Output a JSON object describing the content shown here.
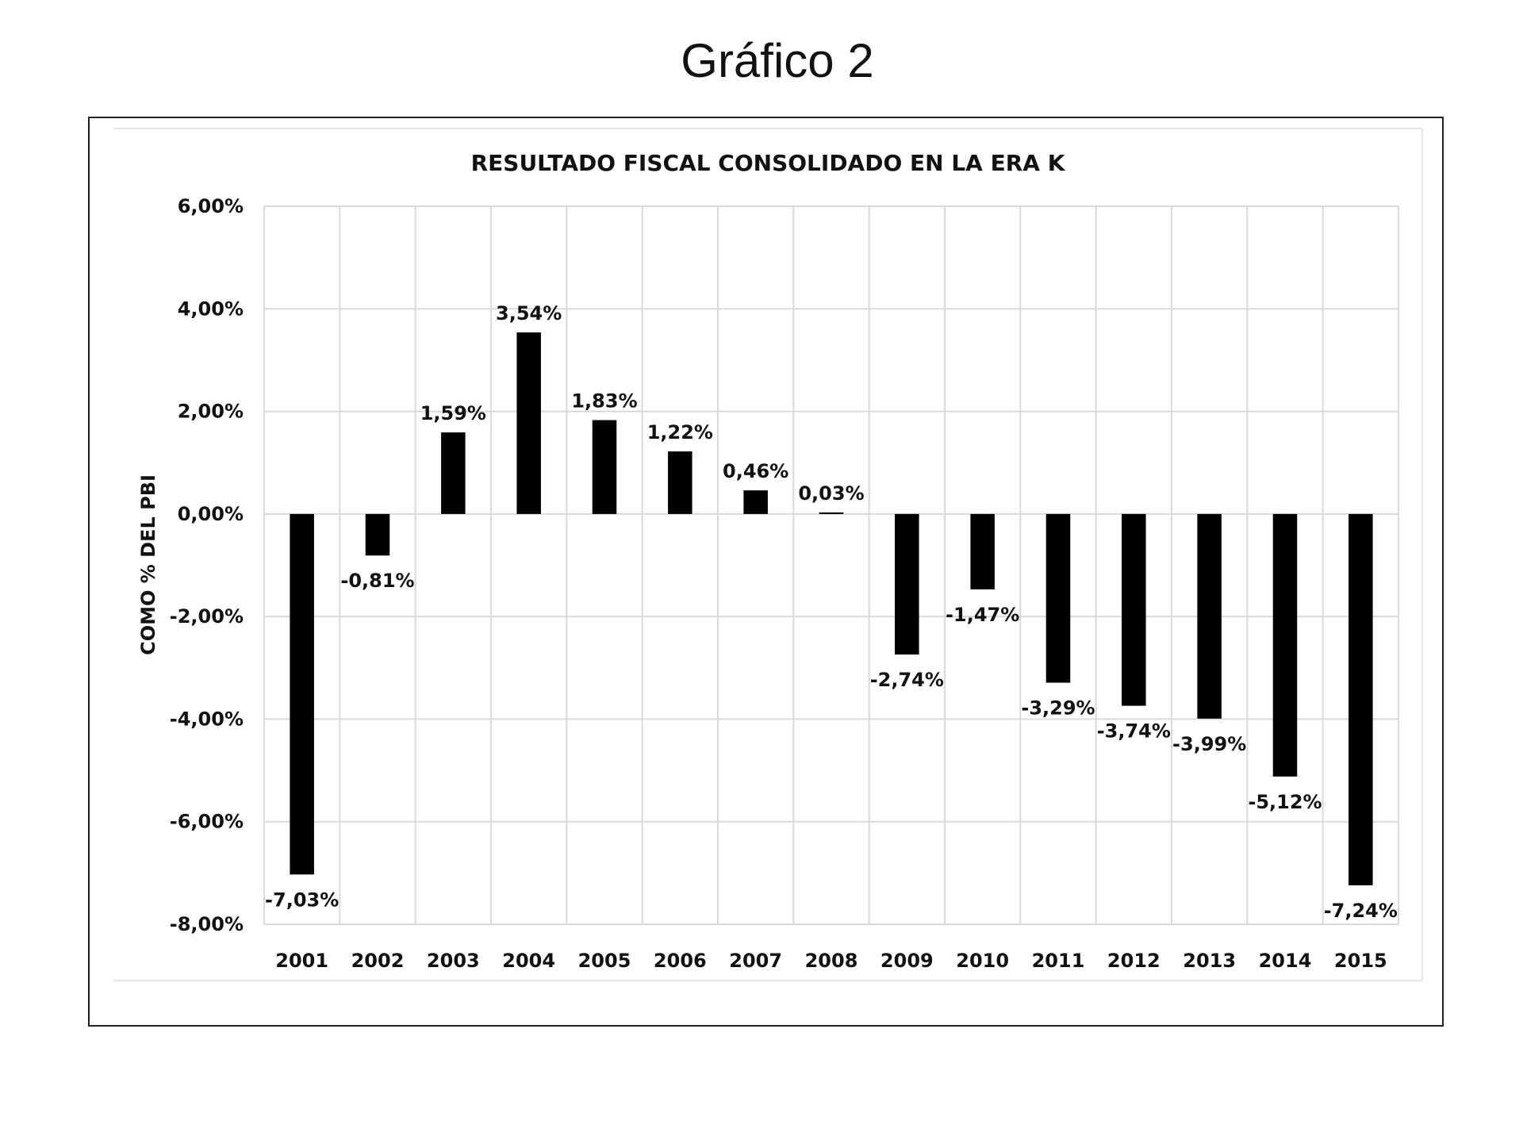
{
  "header": {
    "title": "Gráfico 2"
  },
  "chart_data": {
    "type": "bar",
    "title": "RESULTADO  FISCAL CONSOLIDADO  EN LA ERA K",
    "xlabel": "",
    "ylabel": "COMO % DEL PBI",
    "categories": [
      "2001",
      "2002",
      "2003",
      "2004",
      "2005",
      "2006",
      "2007",
      "2008",
      "2009",
      "2010",
      "2011",
      "2012",
      "2013",
      "2014",
      "2015"
    ],
    "values": [
      -7.03,
      -0.81,
      1.59,
      3.54,
      1.83,
      1.22,
      0.46,
      0.03,
      -2.74,
      -1.47,
      -3.29,
      -3.74,
      -3.99,
      -5.12,
      -7.24
    ],
    "data_labels": [
      "-7,03%",
      "-0,81%",
      "1,59%",
      "3,54%",
      "1,83%",
      "1,22%",
      "0,46%",
      "0,03%",
      "-2,74%",
      "-1,47%",
      "-3,29%",
      "-3,74%",
      "-3,99%",
      "-5,12%",
      "-7,24%"
    ],
    "ylim": [
      -8,
      6
    ],
    "yticks": [
      6,
      4,
      2,
      0,
      -2,
      -4,
      -6,
      -8
    ],
    "ytick_labels": [
      "6,00%",
      "4,00%",
      "2,00%",
      "0,00%",
      "-2,00%",
      "-4,00%",
      "-6,00%",
      "-8,00%"
    ],
    "grid": true,
    "legend": "none",
    "bar_color": "#000000",
    "grid_color": "#d9d9d9"
  }
}
